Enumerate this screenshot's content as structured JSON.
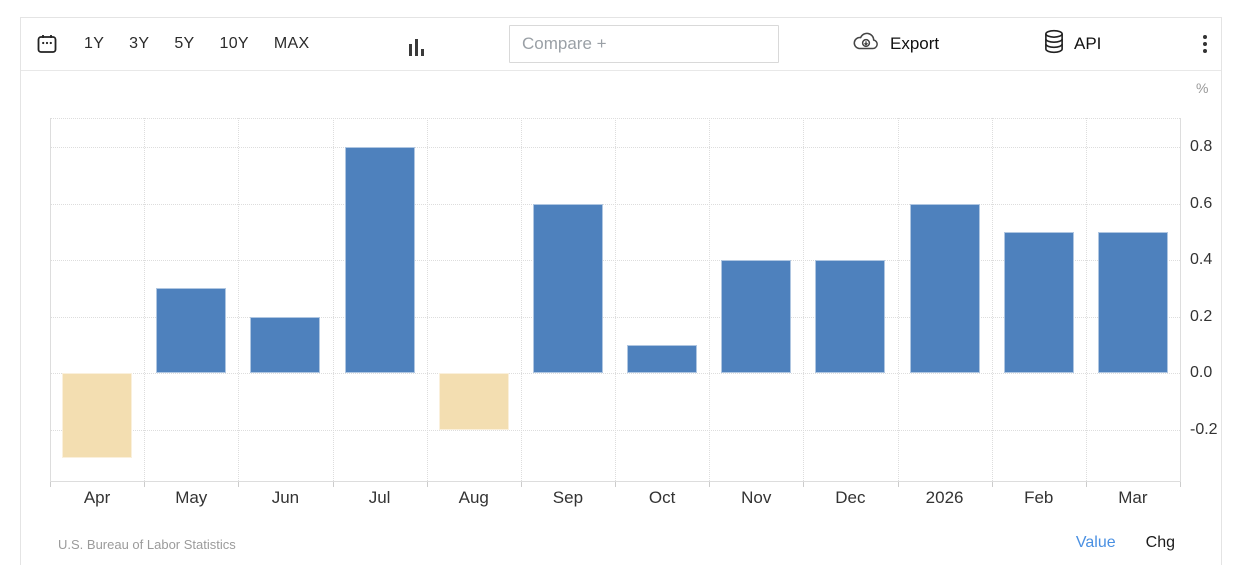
{
  "toolbar": {
    "range_buttons": [
      "1Y",
      "3Y",
      "5Y",
      "10Y",
      "MAX"
    ],
    "compare_placeholder": "Compare +",
    "export_label": "Export",
    "api_label": "API"
  },
  "chart_data": {
    "type": "bar",
    "title": "",
    "unit": "%",
    "categories": [
      "Apr",
      "May",
      "Jun",
      "Jul",
      "Aug",
      "Sep",
      "Oct",
      "Nov",
      "Dec",
      "2026",
      "Feb",
      "Mar"
    ],
    "values": [
      -0.3,
      0.3,
      0.2,
      0.8,
      -0.2,
      0.6,
      0.1,
      0.4,
      0.4,
      0.6,
      0.5,
      0.5
    ],
    "y_ticks": [
      0.8,
      0.6,
      0.4,
      0.2,
      0.0,
      -0.2
    ],
    "ylim": [
      -0.38,
      0.9
    ],
    "grid": true,
    "legend": "none",
    "axis_side": "right",
    "positive_color": "#4e81bd",
    "negative_color": "#f3deb1"
  },
  "footer": {
    "source": "U.S. Bureau of Labor Statistics",
    "value_label": "Value",
    "chg_label": "Chg",
    "value_color": "#4a90e2"
  }
}
